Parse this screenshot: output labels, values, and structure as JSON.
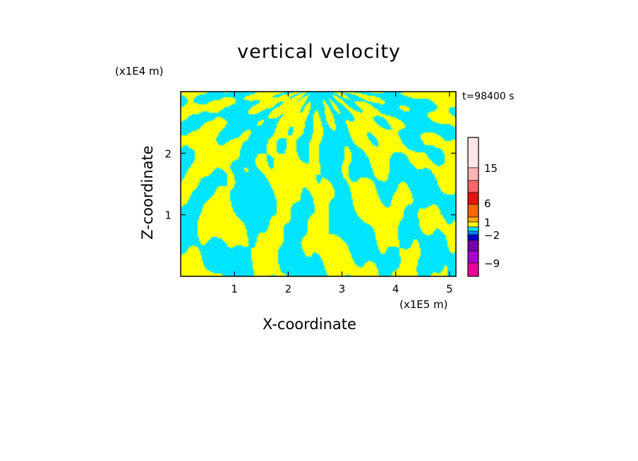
{
  "chart_data": {
    "type": "heatmap",
    "title": "vertical velocity",
    "xlabel": "X-coordinate",
    "ylabel": "Z-coordinate",
    "x_unit": "(x1E5 m)",
    "z_unit": "(x1E4 m)",
    "time_label": "t=98400 s",
    "xlim": [
      0,
      5.12
    ],
    "ylim": [
      0,
      3.0
    ],
    "x_ticks": [
      1,
      2,
      3,
      4,
      5
    ],
    "y_ticks": [
      1,
      2
    ],
    "grid": false,
    "colorbar": {
      "tick_labels": [
        "15",
        "6",
        "1",
        "-2",
        "-9"
      ],
      "colors": [
        "#ffe6e6",
        "#ffb3b3",
        "#ff6666",
        "#ee1111",
        "#ff6600",
        "#ffaa00",
        "#ffff00",
        "#00e5ff",
        "#0088ff",
        "#0000cc",
        "#7700aa",
        "#aa00cc",
        "#ee0099"
      ]
    },
    "dominant_colors": {
      "positive": "#ffff00",
      "negative": "#00e5ff"
    }
  }
}
